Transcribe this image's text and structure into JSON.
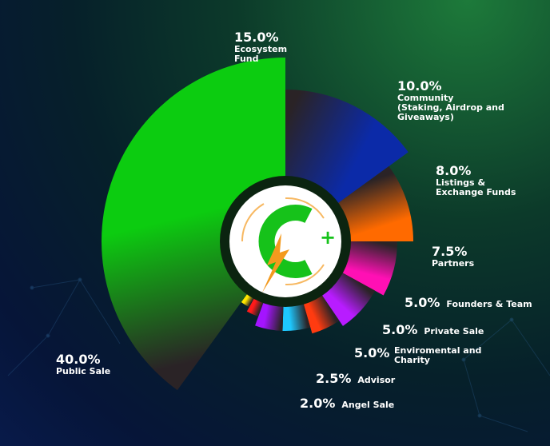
{
  "chart_data": {
    "type": "pie",
    "slices": [
      {
        "label": "Ecosystem Fund",
        "value": 15.0,
        "pct_text": "15.0%",
        "color": "#0b2aa8"
      },
      {
        "label": "Community (Staking, Airdrop and Giveaways)",
        "value": 10.0,
        "pct_text": "10.0%",
        "color": "#ff6a00"
      },
      {
        "label": "Listings & Exchange Funds",
        "value": 8.0,
        "pct_text": "8.0%",
        "color": "#ff10b4"
      },
      {
        "label": "Partners",
        "value": 7.5,
        "pct_text": "7.5%",
        "color": "#b81cff"
      },
      {
        "label": "Founders & Team",
        "value": 5.0,
        "pct_text": "5.0%",
        "color": "#ff3b10"
      },
      {
        "label": "Private Sale",
        "value": 5.0,
        "pct_text": "5.0%",
        "color": "#1ec8ff"
      },
      {
        "label": "Enviromental and Charity",
        "value": 5.0,
        "pct_text": "5.0%",
        "color": "#a414ff"
      },
      {
        "label": "Advisor",
        "value": 2.5,
        "pct_text": "2.5%",
        "color": "#ff1a1a"
      },
      {
        "label": "Angel Sale",
        "value": 2.0,
        "pct_text": "2.0%",
        "color": "#ffe600"
      },
      {
        "label": "Public Sale",
        "value": 40.0,
        "pct_text": "40.0%",
        "color": "#0ccc10"
      }
    ]
  },
  "labels": {
    "ecosystem": {
      "pct": "15.0%",
      "line1": "Ecosystem",
      "line2": "Fund"
    },
    "community": {
      "pct": "10.0%",
      "line1": "Community",
      "line2": "(Staking, Airdrop and",
      "line3": "Giveaways)"
    },
    "listings": {
      "pct": "8.0%",
      "line1": "Listings &",
      "line2": "Exchange Funds"
    },
    "partners": {
      "pct": "7.5%",
      "line1": "Partners"
    },
    "founders": {
      "pct": "5.0%",
      "line1": "Founders & Team"
    },
    "private": {
      "pct": "5.0%",
      "line1": "Private Sale"
    },
    "enviro": {
      "pct": "5.0%",
      "line1": "Enviromental and",
      "line2": "Charity"
    },
    "advisor": {
      "pct": "2.5%",
      "line1": "Advisor"
    },
    "angel": {
      "pct": "2.0%",
      "line1": "Angel Sale"
    },
    "public": {
      "pct": "40.0%",
      "line1": "Public Sale"
    }
  },
  "logo": {
    "plus": "+",
    "colors": {
      "green": "#16c21a",
      "orange": "#f39a1e",
      "ring": "#0b2410"
    }
  },
  "colors": {
    "shadow": "#2a2326"
  }
}
